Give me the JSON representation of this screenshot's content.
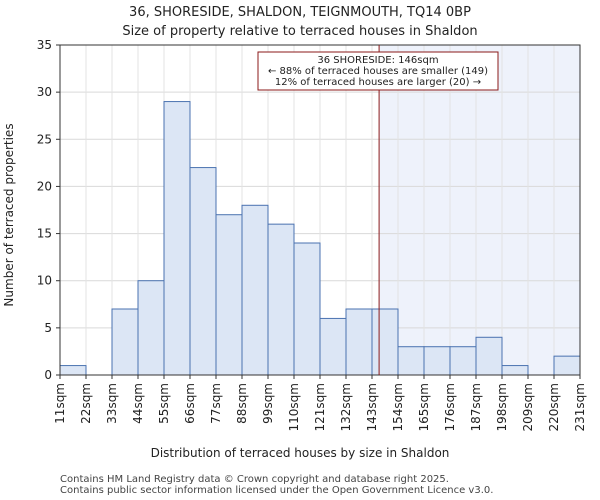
{
  "chart_data": {
    "type": "histogram",
    "title": "36, SHORESIDE, SHALDON, TEIGNMOUTH, TQ14 0BP",
    "subtitle": "Size of property relative to terraced houses in Shaldon",
    "xlabel": "Distribution of terraced houses by size in Shaldon",
    "ylabel": "Number of terraced properties",
    "ylim": [
      0,
      35
    ],
    "yticks": [
      0,
      5,
      10,
      15,
      20,
      25,
      30,
      35
    ],
    "bin_edges": [
      11,
      22,
      33,
      44,
      55,
      66,
      77,
      88,
      99,
      110,
      121,
      132,
      143,
      154,
      165,
      176,
      187,
      198,
      209,
      220,
      231
    ],
    "x_tick_labels": [
      "11sqm",
      "22sqm",
      "33sqm",
      "44sqm",
      "55sqm",
      "66sqm",
      "77sqm",
      "88sqm",
      "99sqm",
      "110sqm",
      "121sqm",
      "132sqm",
      "143sqm",
      "154sqm",
      "165sqm",
      "176sqm",
      "187sqm",
      "198sqm",
      "209sqm",
      "220sqm",
      "231sqm"
    ],
    "values": [
      1,
      0,
      7,
      10,
      29,
      22,
      17,
      18,
      16,
      14,
      6,
      7,
      7,
      3,
      3,
      3,
      4,
      1,
      0,
      2
    ],
    "bar_color": "#dce6f5",
    "bar_edge_color": "#4a72b0",
    "highlight_bg_color": "#eef2fb",
    "marker": {
      "value": 146,
      "color": "#8b1a1a",
      "annotation": [
        "36 SHORESIDE: 146sqm",
        "← 88% of terraced houses are smaller (149)",
        "12% of terraced houses are larger (20) →"
      ]
    },
    "footer": [
      "Contains HM Land Registry data © Crown copyright and database right 2025.",
      "Contains public sector information licensed under the Open Government Licence v3.0."
    ]
  }
}
